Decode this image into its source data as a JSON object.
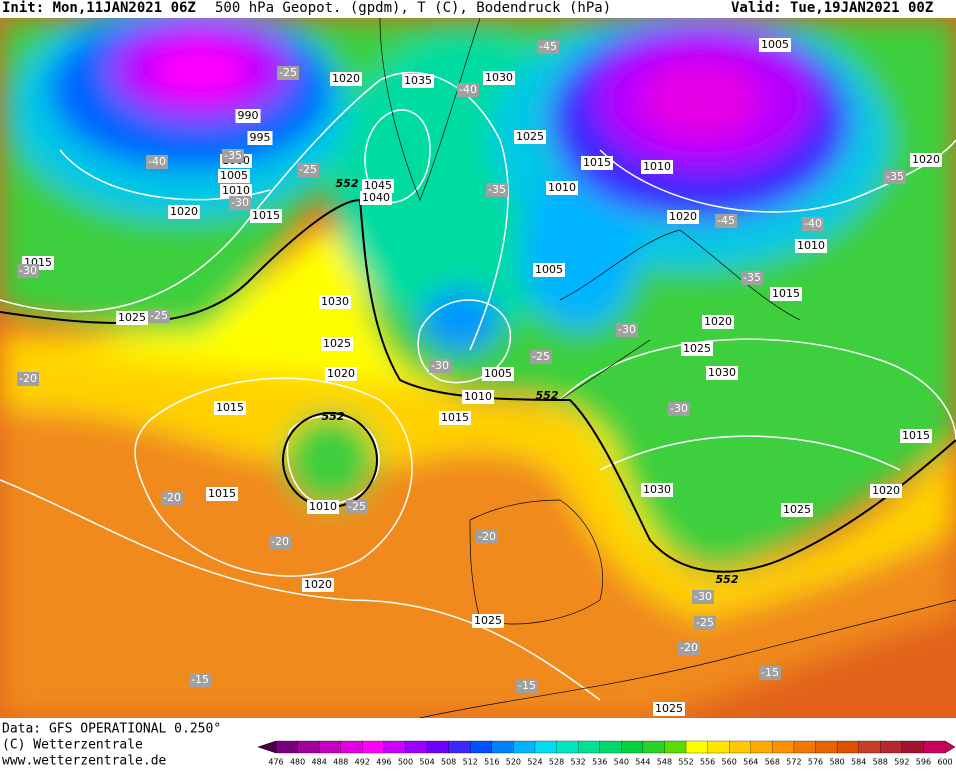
{
  "header": {
    "init": "Init: Mon,11JAN2021 06Z",
    "title": "500 hPa Geopot. (gpdm), T (C), Bodendruck (hPa)",
    "valid": "Valid: Tue,19JAN2021 00Z"
  },
  "footer": {
    "data": "Data: GFS OPERATIONAL 0.250°",
    "copyright": "(C) Wetterzentrale",
    "url": "www.wetterzentrale.de"
  },
  "map": {
    "pressure_labels": [
      "990",
      "995",
      "1000",
      "1005",
      "1010",
      "1015",
      "1020",
      "1015",
      "1025",
      "1020",
      "1035",
      "1030",
      "1025",
      "1045",
      "1040",
      "1030",
      "1025",
      "1020",
      "1015",
      "1015",
      "1010",
      "1020",
      "1010",
      "1015",
      "1005",
      "1005",
      "1010",
      "1015",
      "1010",
      "1020",
      "1005",
      "1020",
      "1010",
      "1015",
      "1020",
      "1025",
      "1030",
      "1030",
      "1025",
      "1020",
      "1015",
      "1025",
      "1025"
    ],
    "temperature_labels": [
      "-25",
      "-40",
      "-35",
      "-30",
      "-25",
      "-30",
      "-25",
      "-20",
      "-45",
      "-40",
      "-35",
      "-35",
      "-45",
      "-40",
      "-35",
      "-30",
      "-25",
      "-30",
      "-30",
      "-20",
      "-25",
      "-20",
      "-20",
      "-30",
      "-25",
      "-20",
      "-15",
      "-15",
      "-15"
    ],
    "height_labels": [
      "552",
      "552",
      "552",
      "552"
    ]
  },
  "colorbar": {
    "levels": [
      476,
      480,
      484,
      488,
      492,
      496,
      500,
      504,
      508,
      512,
      516,
      520,
      524,
      528,
      532,
      536,
      540,
      544,
      548,
      552,
      556,
      560,
      564,
      568,
      572,
      576,
      580,
      584,
      588,
      592,
      596,
      600
    ],
    "colors": [
      "#4b0046",
      "#7a007a",
      "#a0009b",
      "#c300be",
      "#e100e1",
      "#ff00ff",
      "#c800ff",
      "#9b00ff",
      "#6e00ff",
      "#3c28ff",
      "#0050ff",
      "#0082ff",
      "#00b4ff",
      "#00dcf0",
      "#00e6c3",
      "#00e196",
      "#00d769",
      "#00d23c",
      "#28d228",
      "#5adc00",
      "#ffff00",
      "#ffe600",
      "#ffc800",
      "#ffaa00",
      "#ff9100",
      "#f07800",
      "#e66400",
      "#dc5000",
      "#c83c28",
      "#b42832",
      "#a01432",
      "#c8005a"
    ]
  }
}
